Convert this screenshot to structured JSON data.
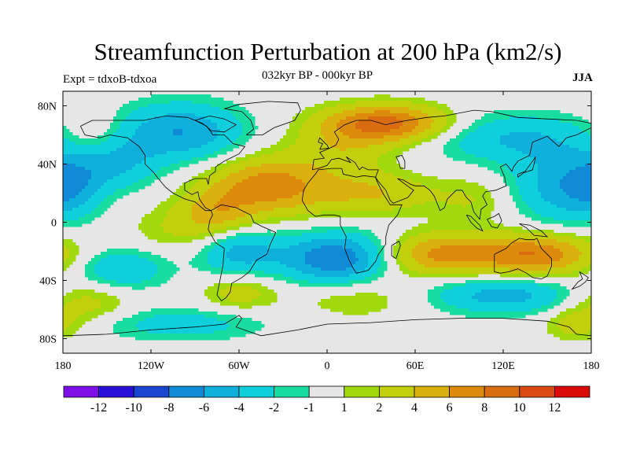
{
  "title": "Streamfunction Perturbation at 200 hPa (km2/s)",
  "subtitle": "032kyr BP - 000kyr BP",
  "expt_label": "Expt = tdxoB-tdxoa",
  "season_label": "JJA",
  "map": {
    "projection": "cylindrical equidistant",
    "lon_range": [
      -180,
      180
    ],
    "lat_range": [
      -90,
      90
    ],
    "x_tick_labels": [
      "180",
      "120W",
      "60W",
      "0",
      "60E",
      "120E",
      "180"
    ],
    "y_tick_labels": [
      "80N",
      "40N",
      "0",
      "40S",
      "80S"
    ],
    "field_features": [
      {
        "lon": 40,
        "lat": 68,
        "value": 9,
        "spread_lon": 30,
        "spread_lat": 9
      },
      {
        "lon": -40,
        "lat": 25,
        "value": 7,
        "spread_lon": 28,
        "spread_lat": 14
      },
      {
        "lon": -75,
        "lat": 7,
        "value": 4,
        "spread_lon": 18,
        "spread_lat": 12
      },
      {
        "lon": 30,
        "lat": 20,
        "value": 4,
        "spread_lon": 30,
        "spread_lat": 10
      },
      {
        "lon": 10,
        "lat": 50,
        "value": 3,
        "spread_lon": 25,
        "spread_lat": 12
      },
      {
        "lon": -160,
        "lat": 60,
        "value": 2,
        "spread_lon": 15,
        "spread_lat": 12
      },
      {
        "lon": -100,
        "lat": 62,
        "value": -6,
        "spread_lon": 30,
        "spread_lat": 14
      },
      {
        "lon": -145,
        "lat": 40,
        "value": -4,
        "spread_lon": 20,
        "spread_lat": 12
      },
      {
        "lon": 125,
        "lat": 58,
        "value": -4,
        "spread_lon": 40,
        "spread_lat": 12
      },
      {
        "lon": 160,
        "lat": 25,
        "value": -5,
        "spread_lon": 25,
        "spread_lat": 18
      },
      {
        "lon": -175,
        "lat": 25,
        "value": -4,
        "spread_lon": 15,
        "spread_lat": 14
      },
      {
        "lon": 5,
        "lat": -25,
        "value": -8,
        "spread_lon": 25,
        "spread_lat": 12
      },
      {
        "lon": -60,
        "lat": -20,
        "value": -5,
        "spread_lon": 20,
        "spread_lat": 12
      },
      {
        "lon": -140,
        "lat": -32,
        "value": -4,
        "spread_lon": 22,
        "spread_lat": 10
      },
      {
        "lon": 140,
        "lat": -22,
        "value": 8,
        "spread_lon": 30,
        "spread_lat": 10
      },
      {
        "lon": 75,
        "lat": -22,
        "value": 6,
        "spread_lon": 25,
        "spread_lat": 10
      },
      {
        "lon": -165,
        "lat": -55,
        "value": 3,
        "spread_lon": 22,
        "spread_lat": 10
      },
      {
        "lon": -60,
        "lat": -48,
        "value": 3,
        "spread_lon": 18,
        "spread_lat": 9
      },
      {
        "lon": 120,
        "lat": -50,
        "value": -5,
        "spread_lon": 35,
        "spread_lat": 9
      },
      {
        "lon": 20,
        "lat": -52,
        "value": 2,
        "spread_lon": 30,
        "spread_lat": 10
      },
      {
        "lon": -100,
        "lat": -5,
        "value": 2,
        "spread_lon": 25,
        "spread_lat": 12
      },
      {
        "lon": 100,
        "lat": 15,
        "value": 2,
        "spread_lon": 20,
        "spread_lat": 12
      },
      {
        "lon": -100,
        "lat": -70,
        "value": -3,
        "spread_lon": 40,
        "spread_lat": 8
      },
      {
        "lon": 170,
        "lat": -70,
        "value": 3,
        "spread_lon": 15,
        "spread_lat": 8
      }
    ]
  },
  "colorbar": {
    "levels": [
      -14,
      -12,
      -10,
      -8,
      -6,
      -4,
      -2,
      -1,
      1,
      2,
      4,
      6,
      8,
      10,
      12,
      14
    ],
    "colors": [
      "#7b0fe6",
      "#2a10d6",
      "#1846cf",
      "#0f8ad7",
      "#0fb0db",
      "#0fcfdc",
      "#18dca0",
      "#e6e6e6",
      "#9fd90e",
      "#c3cf0d",
      "#d9b00c",
      "#db8a0c",
      "#d96c10",
      "#d94a10",
      "#d90a0a"
    ],
    "labels": [
      "-12",
      "-10",
      "-8",
      "-6",
      "-4",
      "-2",
      "-1",
      "1",
      "2",
      "4",
      "6",
      "8",
      "10",
      "12"
    ]
  }
}
